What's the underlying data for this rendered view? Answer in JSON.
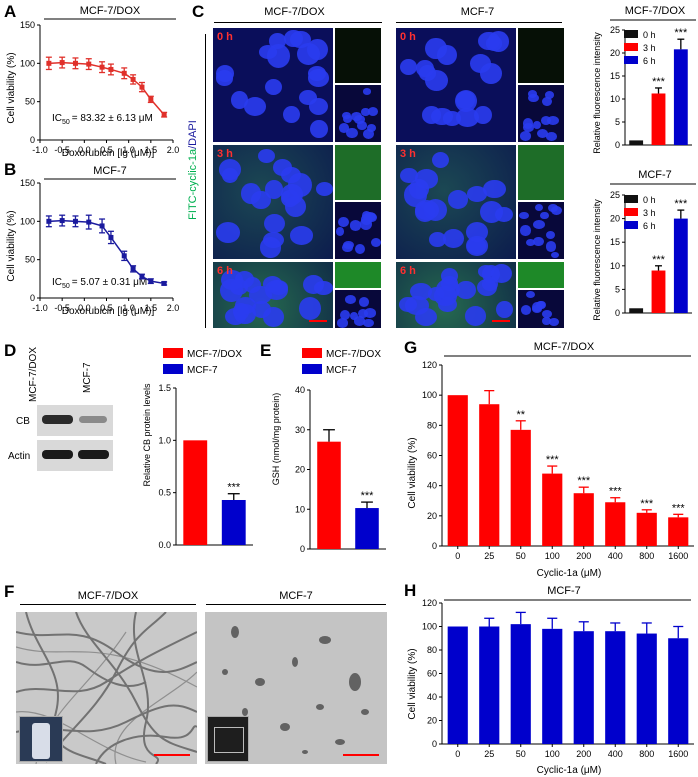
{
  "panels": {
    "A": {
      "letter": "A",
      "title": "MCF-7/DOX",
      "ylabel": "Cell viability (%)",
      "xlabel": "Doxorubicin [lg (μM)]",
      "ic50": "IC",
      "ic50_sub": "50",
      "ic50_text": "= 83.32 ± 6.13 μM"
    },
    "B": {
      "letter": "B",
      "title": "MCF-7",
      "ylabel": "Cell viability (%)",
      "xlabel": "Doxorubicin [lg (μM)]",
      "ic50": "IC",
      "ic50_sub": "50",
      "ic50_text": "= 5.07 ± 0.31 μM"
    },
    "C": {
      "letter": "C",
      "col1": "MCF-7/DOX",
      "col2": "MCF-7",
      "side_label_a": "FITC-cyclic-1a",
      "side_label_b": "/DAPI",
      "times": [
        "0 h",
        "3 h",
        "6 h"
      ]
    },
    "D": {
      "letter": "D",
      "lane1": "MCF-7/DOX",
      "lane2": "MCF-7",
      "band1": "CB",
      "band2": "Actin",
      "ylabel": "Relative CB protein levels",
      "legend": [
        "MCF-7/DOX",
        "MCF-7"
      ]
    },
    "E": {
      "letter": "E",
      "ylabel": "GSH (nmol/mg protein)",
      "legend": [
        "MCF-7/DOX",
        "MCF-7"
      ]
    },
    "F": {
      "letter": "F",
      "left": "MCF-7/DOX",
      "right": "MCF-7"
    },
    "G": {
      "letter": "G",
      "title": "MCF-7/DOX",
      "ylabel": "Cell viability (%)",
      "xlabel": "Cyclic-1a (μM)"
    },
    "H": {
      "letter": "H",
      "title": "MCF-7",
      "ylabel": "Cell viability (%)",
      "xlabel": "Cyclic-1a (μM)"
    },
    "C_chart1": {
      "title": "MCF-7/DOX",
      "ylabel": "Relative fluorescence intensity"
    },
    "C_chart2": {
      "title": "MCF-7",
      "ylabel": "Relative fluorescence intensity"
    }
  },
  "colors": {
    "red": "#ff0000",
    "blue": "#0000cc",
    "darkred": "#e0302a",
    "navy": "#1a1a9e",
    "green": "#00b050"
  },
  "chart_data": [
    {
      "id": "A",
      "type": "line",
      "x": [
        -0.8,
        -0.5,
        -0.2,
        0.1,
        0.4,
        0.6,
        0.9,
        1.1,
        1.3,
        1.5,
        1.8
      ],
      "values": [
        100,
        101,
        100,
        99,
        95,
        92,
        87,
        79,
        69,
        53,
        33
      ],
      "errors": [
        8,
        7,
        7,
        7,
        7,
        7,
        7,
        6,
        6,
        4,
        3
      ],
      "xlim": [
        -1.0,
        2.0
      ],
      "ylim": [
        0,
        150
      ],
      "xticks": [
        "-1.0",
        "-0.5",
        "0.0",
        "0.5",
        "1.0",
        "1.5",
        "2.0"
      ],
      "yticks": [
        "0",
        "50",
        "100",
        "150"
      ]
    },
    {
      "id": "B",
      "type": "line",
      "x": [
        -0.8,
        -0.5,
        -0.2,
        0.1,
        0.4,
        0.6,
        0.9,
        1.1,
        1.3,
        1.5,
        1.8
      ],
      "values": [
        100,
        101,
        100,
        99,
        94,
        79,
        55,
        38,
        28,
        22,
        19
      ],
      "errors": [
        7,
        7,
        7,
        9,
        9,
        8,
        6,
        4,
        3,
        3,
        2
      ],
      "xlim": [
        -1.0,
        2.0
      ],
      "ylim": [
        0,
        150
      ],
      "xticks": [
        "-1.0",
        "-0.5",
        "0.0",
        "0.5",
        "1.0",
        "1.5",
        "2.0"
      ],
      "yticks": [
        "0",
        "50",
        "100",
        "150"
      ]
    },
    {
      "id": "C1",
      "type": "bar",
      "categories": [
        "0 h",
        "3 h",
        "6 h"
      ],
      "values": [
        1.0,
        11.2,
        20.8
      ],
      "errors": [
        0,
        1.2,
        2.2
      ],
      "sig": [
        "",
        "***",
        "***"
      ],
      "ylim": [
        0,
        25
      ],
      "yticks": [
        "0",
        "5",
        "10",
        "15",
        "20",
        "25"
      ]
    },
    {
      "id": "C2",
      "type": "bar",
      "categories": [
        "0 h",
        "3 h",
        "6 h"
      ],
      "values": [
        1.0,
        9.0,
        20.0
      ],
      "errors": [
        0,
        1.0,
        1.8
      ],
      "sig": [
        "",
        "***",
        "***"
      ],
      "ylim": [
        0,
        25
      ],
      "yticks": [
        "0",
        "5",
        "10",
        "15",
        "20",
        "25"
      ]
    },
    {
      "id": "D",
      "type": "bar",
      "categories": [
        "MCF-7/DOX",
        "MCF-7"
      ],
      "values": [
        1.0,
        0.43
      ],
      "errors": [
        0,
        0.06
      ],
      "sig": [
        "",
        "***"
      ],
      "ylim": [
        0,
        1.5
      ],
      "yticks": [
        "0.0",
        "0.5",
        "1.0",
        "1.5"
      ]
    },
    {
      "id": "E",
      "type": "bar",
      "categories": [
        "MCF-7/DOX",
        "MCF-7"
      ],
      "values": [
        27,
        10.3
      ],
      "errors": [
        3,
        1.5
      ],
      "sig": [
        "",
        "***"
      ],
      "ylim": [
        0,
        40
      ],
      "yticks": [
        "0",
        "10",
        "20",
        "30",
        "40"
      ]
    },
    {
      "id": "G",
      "type": "bar",
      "categories": [
        "0",
        "25",
        "50",
        "100",
        "200",
        "400",
        "800",
        "1600"
      ],
      "values": [
        100,
        94,
        77,
        48,
        35,
        29,
        22,
        19
      ],
      "errors": [
        0,
        9,
        6,
        5,
        4,
        3,
        2,
        2
      ],
      "sig": [
        "",
        "",
        "**",
        "***",
        "***",
        "***",
        "***",
        "***"
      ],
      "ylim": [
        0,
        120
      ],
      "yticks": [
        "0",
        "20",
        "40",
        "60",
        "80",
        "100",
        "120"
      ]
    },
    {
      "id": "H",
      "type": "bar",
      "categories": [
        "0",
        "25",
        "50",
        "100",
        "200",
        "400",
        "800",
        "1600"
      ],
      "values": [
        100,
        100,
        102,
        98,
        96,
        96,
        94,
        90
      ],
      "errors": [
        0,
        7,
        10,
        9,
        8,
        7,
        9,
        10
      ],
      "sig": [
        "",
        "",
        "",
        "",
        "",
        "",
        "",
        ""
      ],
      "ylim": [
        0,
        120
      ],
      "yticks": [
        "0",
        "20",
        "40",
        "60",
        "80",
        "100",
        "120"
      ]
    }
  ]
}
